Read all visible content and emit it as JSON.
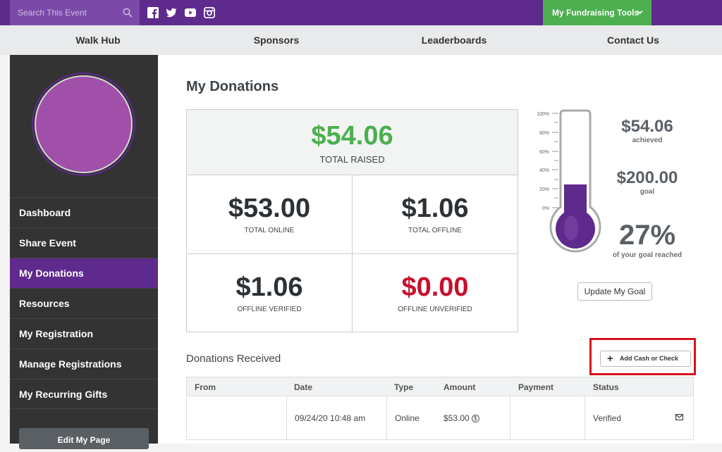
{
  "topbar": {
    "search_placeholder": "Search This Event",
    "social": [
      "facebook-icon",
      "twitter-icon",
      "youtube-icon",
      "instagram-icon"
    ],
    "fundraising_tools": "My Fundraising Tools"
  },
  "nav": {
    "items": [
      "Walk Hub",
      "Sponsors",
      "Leaderboards",
      "Contact Us"
    ]
  },
  "sidebar": {
    "items": [
      {
        "label": "Dashboard"
      },
      {
        "label": "Share Event"
      },
      {
        "label": "My Donations"
      },
      {
        "label": "Resources"
      },
      {
        "label": "My Registration"
      },
      {
        "label": "Manage Registrations"
      },
      {
        "label": "My Recurring Gifts"
      }
    ],
    "active": "My Donations",
    "edit_button": "Edit My Page"
  },
  "main": {
    "title": "My Donations",
    "summary": {
      "total": {
        "amount": "$54.06",
        "label": "TOTAL RAISED"
      },
      "online": {
        "amount": "$53.00",
        "label": "TOTAL ONLINE"
      },
      "offline": {
        "amount": "$1.06",
        "label": "TOTAL OFFLINE"
      },
      "verified": {
        "amount": "$1.06",
        "label": "OFFLINE VERIFIED"
      },
      "unverified": {
        "amount": "$0.00",
        "label": "OFFLINE UNVERIFIED"
      }
    },
    "goal": {
      "achieved": "$54.06",
      "achieved_label": "achieved",
      "goal": "$200.00",
      "goal_label": "goal",
      "percent": "27%",
      "percent_label": "of your goal reached",
      "fill_fraction": 0.27,
      "scale": [
        "100%",
        "80%",
        "60%",
        "40%",
        "20%",
        "0%"
      ],
      "update_button": "Update My Goal"
    },
    "donations": {
      "title": "Donations Received",
      "add_button": "Add Cash or Check",
      "columns": [
        "From",
        "Date",
        "Type",
        "Amount",
        "Payment",
        "Status"
      ],
      "rows": [
        {
          "from": "",
          "date": "09/24/20 10:48 am",
          "type": "Online",
          "amount": "$53.00",
          "payment": "",
          "status": "Verified"
        }
      ]
    }
  },
  "colors": {
    "brand": "#5f2a8d",
    "green": "#4caf50",
    "red": "#c8102e"
  }
}
